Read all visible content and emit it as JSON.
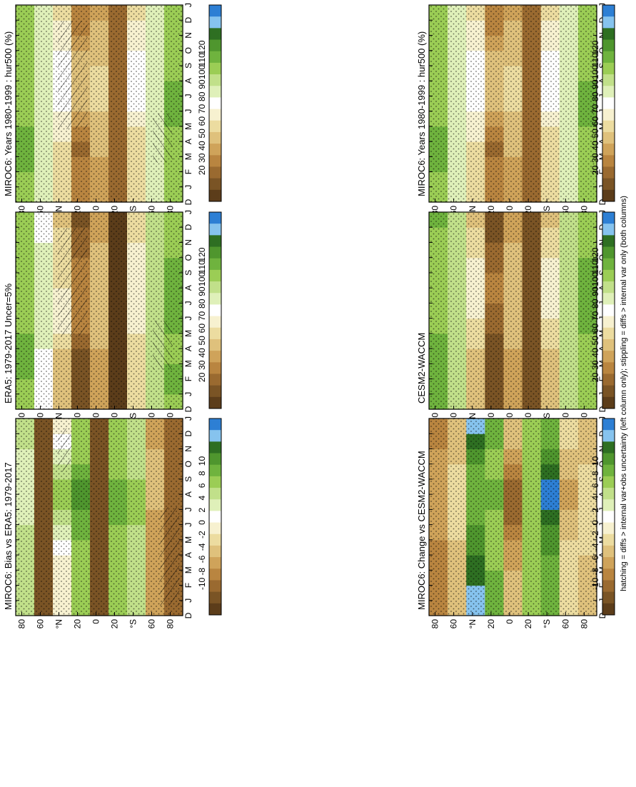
{
  "figure": {
    "footnote": "hatching = diffs > internal var+obs uncertainty (left column only); stippling = diffs > internal var only (both columns)"
  },
  "colors": {
    "humidity_scale": [
      "#2d7fd4",
      "#86c3ee",
      "#2e6f22",
      "#4f962e",
      "#6fb33e",
      "#9bcd55",
      "#c1e08a",
      "#dff0b9",
      "#ffffff",
      "#f7f1d0",
      "#ecdca0",
      "#dfc17c",
      "#cfa35a",
      "#b98540",
      "#9a6a30",
      "#7a5425",
      "#5c3d1a"
    ],
    "change_scale": [
      "#2d7fd4",
      "#86c3ee",
      "#2e6f22",
      "#4f962e",
      "#6fb33e",
      "#9bcd55",
      "#c1e08a",
      "#dff0b9",
      "#ffffff",
      "#f7f1d0",
      "#ecdca0",
      "#dfc17c",
      "#cfa35a",
      "#b98540",
      "#9a6a30",
      "#7a5425",
      "#5c3d1a"
    ]
  },
  "axes": {
    "months": [
      "D",
      "J",
      "F",
      "M",
      "A",
      "M",
      "J",
      "J",
      "A",
      "S",
      "O",
      "N",
      "D",
      "J"
    ],
    "lat_labels": [
      "80",
      "60",
      "°N",
      "20",
      "0",
      "20",
      "°S",
      "60",
      "80"
    ]
  },
  "colorbars": {
    "humidity_ticks": [
      "120",
      "110",
      "100",
      "90",
      "80",
      "70",
      "60",
      "50",
      "40",
      "30",
      "20"
    ],
    "change_ticks": [
      "10",
      "8",
      "6",
      "4",
      "2",
      "0",
      "-2",
      "-4",
      "-6",
      "-8",
      "-10"
    ]
  },
  "chart_data": [
    {
      "type": "heatmap",
      "title": "MIROC6: Years 1980-1999 : hur500 (%)",
      "x": [
        "J",
        "F",
        "M",
        "A",
        "M",
        "J",
        "J",
        "A",
        "S",
        "O",
        "N",
        "D"
      ],
      "y": [
        -80,
        -60,
        -40,
        -20,
        0,
        20,
        40,
        60,
        80
      ],
      "values": [
        [
          88,
          88,
          88,
          90,
          92,
          92,
          92,
          90,
          88,
          88,
          88,
          88
        ],
        [
          76,
          76,
          76,
          76,
          76,
          76,
          76,
          76,
          76,
          76,
          76,
          76
        ],
        [
          60,
          58,
          58,
          60,
          65,
          68,
          70,
          70,
          68,
          65,
          62,
          60
        ],
        [
          35,
          35,
          35,
          35,
          35,
          35,
          35,
          35,
          35,
          35,
          35,
          35
        ],
        [
          45,
          45,
          50,
          55,
          55,
          60,
          60,
          60,
          55,
          50,
          50,
          45
        ],
        [
          40,
          38,
          35,
          40,
          45,
          50,
          55,
          55,
          50,
          45,
          40,
          40
        ],
        [
          60,
          58,
          58,
          62,
          66,
          68,
          70,
          70,
          68,
          64,
          62,
          60
        ],
        [
          75,
          75,
          75,
          76,
          76,
          76,
          76,
          76,
          76,
          75,
          75,
          75
        ],
        [
          90,
          92,
          92,
          92,
          90,
          88,
          88,
          88,
          88,
          88,
          90,
          90
        ]
      ],
      "zlim": [
        20,
        120
      ]
    },
    {
      "type": "heatmap",
      "title": "ERA5: 1979-2017 Uncer=5%",
      "x": [
        "J",
        "F",
        "M",
        "A",
        "M",
        "J",
        "J",
        "A",
        "S",
        "O",
        "N",
        "D"
      ],
      "y": [
        -80,
        -60,
        -40,
        -20,
        0,
        20,
        40,
        60,
        80
      ],
      "values": [
        [
          92,
          92,
          90,
          90,
          92,
          92,
          92,
          92,
          92,
          90,
          90,
          90
        ],
        [
          80,
          80,
          80,
          80,
          80,
          80,
          80,
          80,
          80,
          80,
          80,
          80
        ],
        [
          60,
          58,
          58,
          60,
          62,
          64,
          66,
          66,
          64,
          62,
          60,
          60
        ],
        [
          25,
          25,
          25,
          25,
          25,
          25,
          25,
          25,
          25,
          25,
          25,
          25
        ],
        [
          45,
          45,
          48,
          50,
          52,
          55,
          55,
          55,
          52,
          50,
          48,
          45
        ],
        [
          30,
          28,
          28,
          32,
          38,
          40,
          42,
          42,
          40,
          36,
          32,
          30
        ],
        [
          55,
          55,
          55,
          60,
          62,
          62,
          62,
          60,
          60,
          58,
          58,
          55
        ],
        [
          72,
          72,
          72,
          75,
          75,
          75,
          75,
          75,
          75,
          75,
          72,
          72
        ],
        [
          90,
          95,
          95,
          95,
          90,
          88,
          88,
          88,
          88,
          88,
          90,
          90
        ]
      ],
      "zlim": [
        20,
        120
      ]
    },
    {
      "type": "heatmap",
      "title": "MIROC6: Bias vs ERA5: 1979-2017",
      "x": [
        "J",
        "F",
        "M",
        "A",
        "M",
        "J",
        "J",
        "A",
        "S",
        "O",
        "N",
        "D"
      ],
      "y": [
        -80,
        -60,
        -40,
        -20,
        0,
        20,
        40,
        60,
        80
      ],
      "values": [
        [
          -7,
          -7,
          -7,
          -7,
          -7,
          -7,
          -7,
          -7,
          -7,
          -7,
          -7,
          -7
        ],
        [
          -5,
          -5,
          -5,
          -5,
          -5,
          -5,
          -4,
          -4,
          -4,
          -4,
          -5,
          -5
        ],
        [
          2,
          2,
          2,
          2,
          2,
          3,
          3,
          3,
          2,
          2,
          2,
          2
        ],
        [
          4,
          4,
          4,
          4,
          4,
          5,
          5,
          5,
          4,
          4,
          4,
          4
        ],
        [
          -8,
          -8,
          -8,
          -8,
          -8,
          -8,
          -8,
          -8,
          -8,
          -8,
          -8,
          -8
        ],
        [
          4,
          4,
          4,
          4,
          5,
          5,
          6,
          6,
          5,
          4,
          4,
          4
        ],
        [
          -1,
          -1,
          -1,
          0,
          1,
          2,
          3,
          3,
          2,
          1,
          0,
          -1
        ],
        [
          -8,
          -8,
          -8,
          -8,
          -8,
          -8,
          -8,
          -8,
          -8,
          -8,
          -8,
          -8
        ],
        [
          2,
          2,
          2,
          2,
          2,
          1,
          1,
          1,
          1,
          1,
          2,
          2
        ]
      ],
      "zlim": [
        -10,
        10
      ]
    },
    {
      "type": "heatmap",
      "title": "MIROC6: Years 1980-1999 : hur500 (%)",
      "x": [
        "J",
        "F",
        "M",
        "A",
        "M",
        "J",
        "J",
        "A",
        "S",
        "O",
        "N",
        "D"
      ],
      "y": [
        -80,
        -60,
        -40,
        -20,
        0,
        20,
        40,
        60,
        80
      ],
      "values": [
        [
          88,
          88,
          88,
          90,
          92,
          92,
          92,
          90,
          88,
          88,
          88,
          88
        ],
        [
          76,
          76,
          76,
          76,
          76,
          76,
          76,
          76,
          76,
          76,
          76,
          76
        ],
        [
          60,
          58,
          58,
          60,
          65,
          68,
          70,
          70,
          68,
          65,
          62,
          60
        ],
        [
          35,
          35,
          35,
          35,
          35,
          35,
          35,
          35,
          35,
          35,
          35,
          35
        ],
        [
          45,
          45,
          50,
          55,
          55,
          60,
          60,
          60,
          55,
          50,
          50,
          45
        ],
        [
          40,
          38,
          35,
          40,
          45,
          50,
          55,
          55,
          50,
          45,
          40,
          40
        ],
        [
          60,
          58,
          58,
          62,
          66,
          68,
          70,
          70,
          68,
          64,
          62,
          60
        ],
        [
          75,
          75,
          75,
          76,
          76,
          76,
          76,
          76,
          76,
          75,
          75,
          75
        ],
        [
          90,
          92,
          92,
          92,
          90,
          88,
          88,
          88,
          88,
          88,
          90,
          90
        ]
      ],
      "zlim": [
        20,
        120
      ]
    },
    {
      "type": "heatmap",
      "title": "CESM2-WACCM",
      "x": [
        "J",
        "F",
        "M",
        "A",
        "M",
        "J",
        "J",
        "A",
        "S",
        "O",
        "N",
        "D"
      ],
      "y": [
        -80,
        -60,
        -40,
        -20,
        0,
        20,
        40,
        60,
        80
      ],
      "values": [
        [
          90,
          90,
          90,
          90,
          92,
          92,
          92,
          92,
          92,
          90,
          90,
          90
        ],
        [
          80,
          80,
          80,
          80,
          80,
          80,
          80,
          80,
          80,
          80,
          80,
          80
        ],
        [
          55,
          55,
          55,
          58,
          60,
          62,
          64,
          64,
          62,
          60,
          58,
          55
        ],
        [
          28,
          28,
          28,
          28,
          28,
          28,
          28,
          28,
          28,
          28,
          28,
          28
        ],
        [
          45,
          45,
          48,
          50,
          52,
          55,
          55,
          55,
          52,
          50,
          48,
          45
        ],
        [
          28,
          28,
          28,
          30,
          34,
          36,
          38,
          38,
          36,
          34,
          30,
          28
        ],
        [
          55,
          55,
          55,
          58,
          60,
          62,
          64,
          64,
          62,
          58,
          56,
          55
        ],
        [
          82,
          82,
          82,
          82,
          82,
          82,
          82,
          82,
          82,
          82,
          82,
          82
        ],
        [
          92,
          92,
          92,
          92,
          90,
          90,
          90,
          90,
          90,
          90,
          90,
          92
        ]
      ],
      "zlim": [
        20,
        120
      ]
    },
    {
      "type": "heatmap",
      "title": "MIROC6: Change vs CESM2-WACCM",
      "x": [
        "J",
        "F",
        "M",
        "A",
        "M",
        "J",
        "J",
        "A",
        "S",
        "O",
        "N",
        "D"
      ],
      "y": [
        -80,
        -60,
        -40,
        -20,
        0,
        20,
        40,
        60,
        80
      ],
      "values": [
        [
          -3,
          -3,
          -3,
          -2,
          -2,
          -2,
          -2,
          -2,
          -2,
          -3,
          -3,
          -3
        ],
        [
          -2,
          -2,
          -2,
          -2,
          -3,
          -4,
          -5,
          -5,
          -4,
          -3,
          -2,
          -2
        ],
        [
          5,
          5,
          5,
          6,
          6,
          7,
          9,
          9,
          7,
          6,
          5,
          5
        ],
        [
          4,
          4,
          4,
          4,
          4,
          4,
          4,
          4,
          4,
          4,
          4,
          4
        ],
        [
          -4,
          -4,
          -5,
          -5,
          -6,
          -7,
          -7,
          -7,
          -6,
          -5,
          -4,
          -4
        ],
        [
          5,
          5,
          4,
          4,
          4,
          4,
          5,
          5,
          4,
          4,
          5,
          5
        ],
        [
          8,
          7,
          7,
          6,
          6,
          5,
          5,
          5,
          5,
          6,
          7,
          8
        ],
        [
          -4,
          -4,
          -4,
          -3,
          -2,
          -2,
          -2,
          -2,
          -2,
          -3,
          -4,
          -4
        ],
        [
          -6,
          -6,
          -6,
          -6,
          -5,
          -5,
          -5,
          -5,
          -5,
          -5,
          -6,
          -6
        ]
      ],
      "zlim": [
        -10,
        10
      ]
    }
  ]
}
